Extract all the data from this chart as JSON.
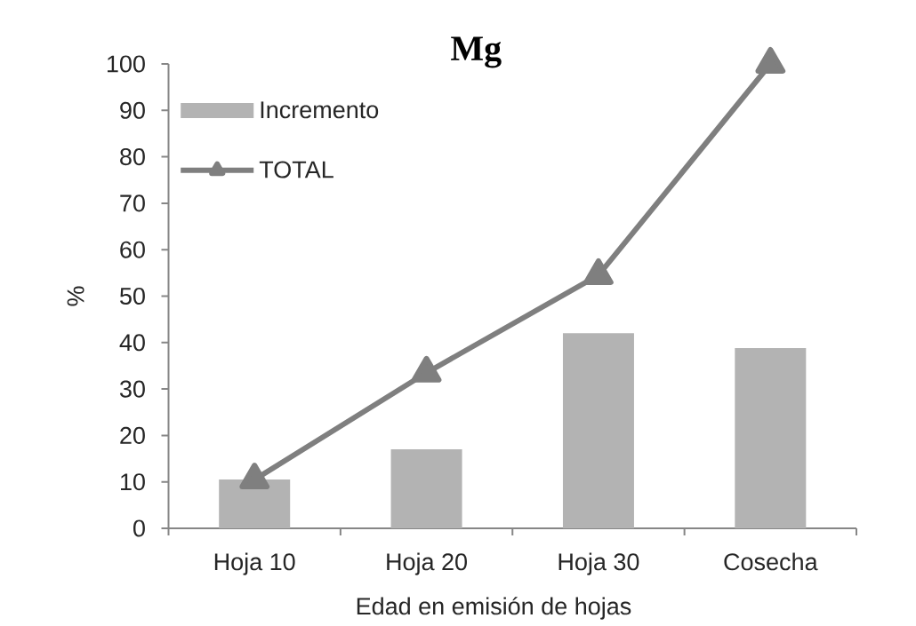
{
  "chart_data": {
    "type": "bar",
    "title": "Mg",
    "xlabel": "Edad en emisión de hojas",
    "ylabel": "%",
    "categories": [
      "Hoja 10",
      "Hoja 20",
      "Hoja 30",
      "Cosecha"
    ],
    "series": [
      {
        "name": "Incremento",
        "color": "#b3b3b3",
        "values": [
          10.5,
          17,
          42,
          38.8
        ]
      },
      {
        "name": "TOTAL",
        "type": "line",
        "color": "#7f7f7f",
        "values": [
          10.5,
          33.5,
          54.5,
          100
        ]
      }
    ],
    "ylim": [
      0,
      100
    ],
    "yticks": [
      0,
      10,
      20,
      30,
      40,
      50,
      60,
      70,
      80,
      90,
      100
    ],
    "grid": false,
    "legend": "top left",
    "marker": "triangle",
    "line_style": "solid"
  }
}
